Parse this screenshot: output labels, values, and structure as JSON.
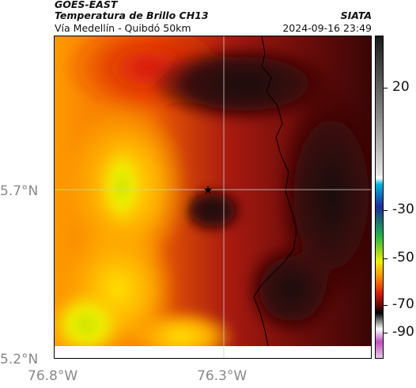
{
  "header": {
    "source": "GOES-EAST",
    "product": "Temperatura de Brillo CH13",
    "subtitle": "Vía Medellín - Quibdó 50km",
    "organization": "SIATA",
    "datetime": "2024-09-16 23:49"
  },
  "map": {
    "lat_labels": [
      "5.7°N",
      "5.2°N"
    ],
    "lon_labels": [
      "76.8°W",
      "76.3°W"
    ],
    "grid": true,
    "marker": "star-icon"
  },
  "colorbar": {
    "labels": [
      "20",
      "-30",
      "-50",
      "-70",
      "-90"
    ],
    "colors": {
      "warm_dark": "#1a1a1a",
      "gray_high": "#e6e6e6",
      "cyan": "#00b4e0",
      "blue": "#1f2a9a",
      "green": "#21b24a",
      "yellow": "#f0f000",
      "orange": "#ff8a00",
      "red": "#d81a0a",
      "maroon": "#5a0808",
      "magenta": "#c050c0"
    }
  }
}
